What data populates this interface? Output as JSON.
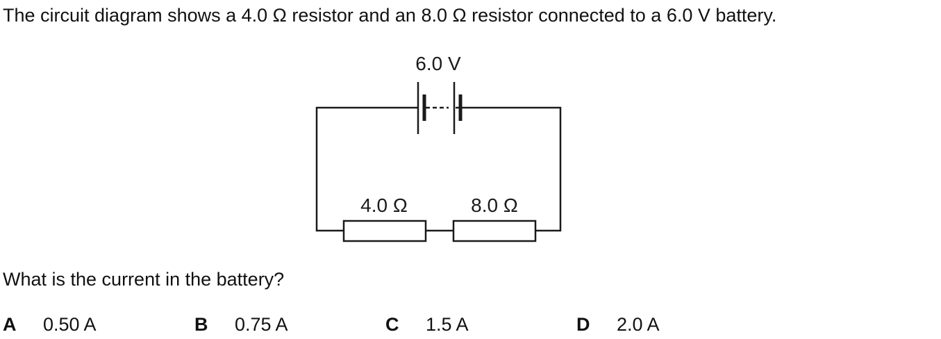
{
  "question": {
    "intro": "The circuit diagram shows a 4.0 Ω resistor and an 8.0 Ω resistor connected to a 6.0 V battery.",
    "prompt": "What is the current in the battery?"
  },
  "diagram": {
    "battery_label": "6.0 V",
    "resistor_1_label": "4.0 Ω",
    "resistor_2_label": "8.0 Ω"
  },
  "options": [
    {
      "letter": "A",
      "value": "0.50 A"
    },
    {
      "letter": "B",
      "value": "0.75 A"
    },
    {
      "letter": "C",
      "value": "1.5 A"
    },
    {
      "letter": "D",
      "value": "2.0 A"
    }
  ]
}
